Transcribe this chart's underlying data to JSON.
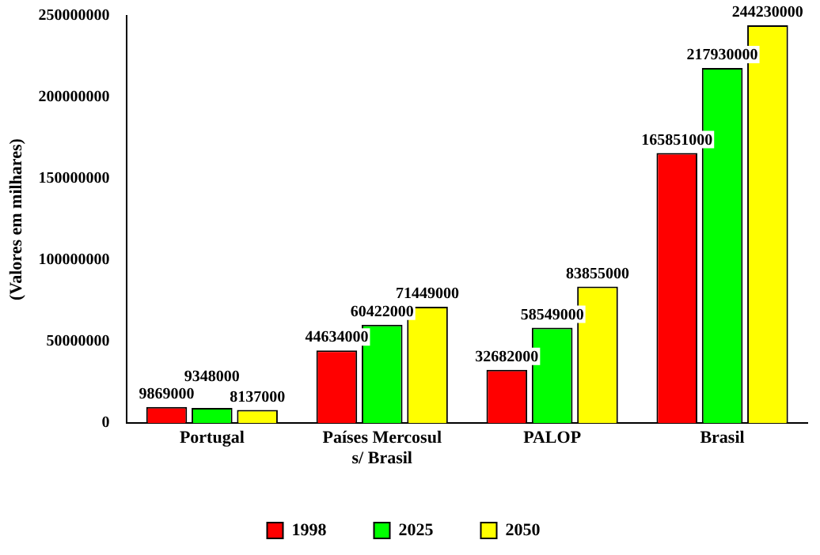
{
  "chart_data": {
    "type": "bar",
    "ylabel": "(Valores em milhares)",
    "categories": [
      "Portugal",
      "Países Mercosul s/ Brasil",
      "PALOP",
      "Brasil"
    ],
    "series": [
      {
        "name": "1998",
        "color": "#ff0000",
        "values": [
          9869000,
          44634000,
          32682000,
          165851000
        ]
      },
      {
        "name": "2025",
        "color": "#00ff00",
        "values": [
          9348000,
          60422000,
          58549000,
          217930000
        ]
      },
      {
        "name": "2050",
        "color": "#ffff00",
        "values": [
          8137000,
          71449000,
          83855000,
          244230000
        ]
      }
    ],
    "ylim": [
      0,
      250000000
    ],
    "yticks": [
      0,
      50000000,
      100000000,
      150000000,
      200000000,
      250000000
    ],
    "grid": false,
    "legend": "bottom",
    "data_labels": true
  }
}
